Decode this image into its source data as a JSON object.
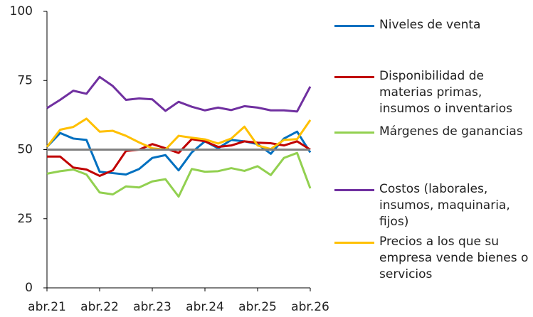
{
  "chart_data": {
    "type": "line",
    "categories": [
      "abr.21",
      null,
      null,
      null,
      "abr.22",
      null,
      null,
      null,
      "abr.23",
      null,
      null,
      null,
      "abr.24",
      null,
      null,
      null,
      "abr.25",
      null,
      null,
      null,
      "abr.26"
    ],
    "series": [
      {
        "name": "Niveles de venta",
        "color": "#0070c0",
        "values": [
          51,
          56,
          54,
          53.5,
          42,
          41.5,
          41,
          43,
          47,
          48,
          42.5,
          49,
          53,
          50.5,
          53.5,
          53,
          52,
          48.5,
          54,
          56.5,
          49
        ]
      },
      {
        "name": "Disponibilidad de materias primas, insumos o inventarios",
        "color": "#c00000",
        "values": [
          47.5,
          47.5,
          43.5,
          42.8,
          40.5,
          42.5,
          49.5,
          50,
          52,
          50.5,
          48.8,
          53.8,
          53,
          51,
          51.5,
          53,
          52.5,
          52.3,
          51.5,
          53,
          50
        ]
      },
      {
        "name": "Márgenes de ganancias",
        "color": "#92d050",
        "values": [
          41.3,
          42.2,
          42.8,
          41,
          34.5,
          33.8,
          36.7,
          36.3,
          38.5,
          39.3,
          33,
          43,
          42,
          42.2,
          43.3,
          42.3,
          44,
          40.8,
          47,
          48.8,
          36
        ]
      },
      {
        "name": "Costos (laborales, insumos, maquinaria, fijos)",
        "color": "#7030a0",
        "values": [
          65,
          68,
          71.3,
          70.2,
          76.3,
          73,
          68,
          68.5,
          68.2,
          64,
          67.3,
          65.5,
          64.2,
          65.2,
          64.3,
          65.7,
          65.2,
          64.2,
          64.2,
          63.8,
          72.8
        ]
      },
      {
        "name": "Precios a los que su empresa vende bienes o servicios",
        "color": "#ffc000",
        "values": [
          51,
          57.2,
          58.2,
          61.2,
          56.5,
          56.8,
          55,
          52.6,
          50.5,
          50,
          55,
          54.3,
          53.7,
          52.2,
          54,
          58.3,
          51.5,
          50.2,
          53.5,
          53.8,
          60.7
        ]
      }
    ],
    "reference_line": {
      "value": 50,
      "color": "#808080"
    },
    "ylim": [
      0,
      100
    ],
    "yticks": [
      0,
      25,
      50,
      75,
      100
    ]
  }
}
